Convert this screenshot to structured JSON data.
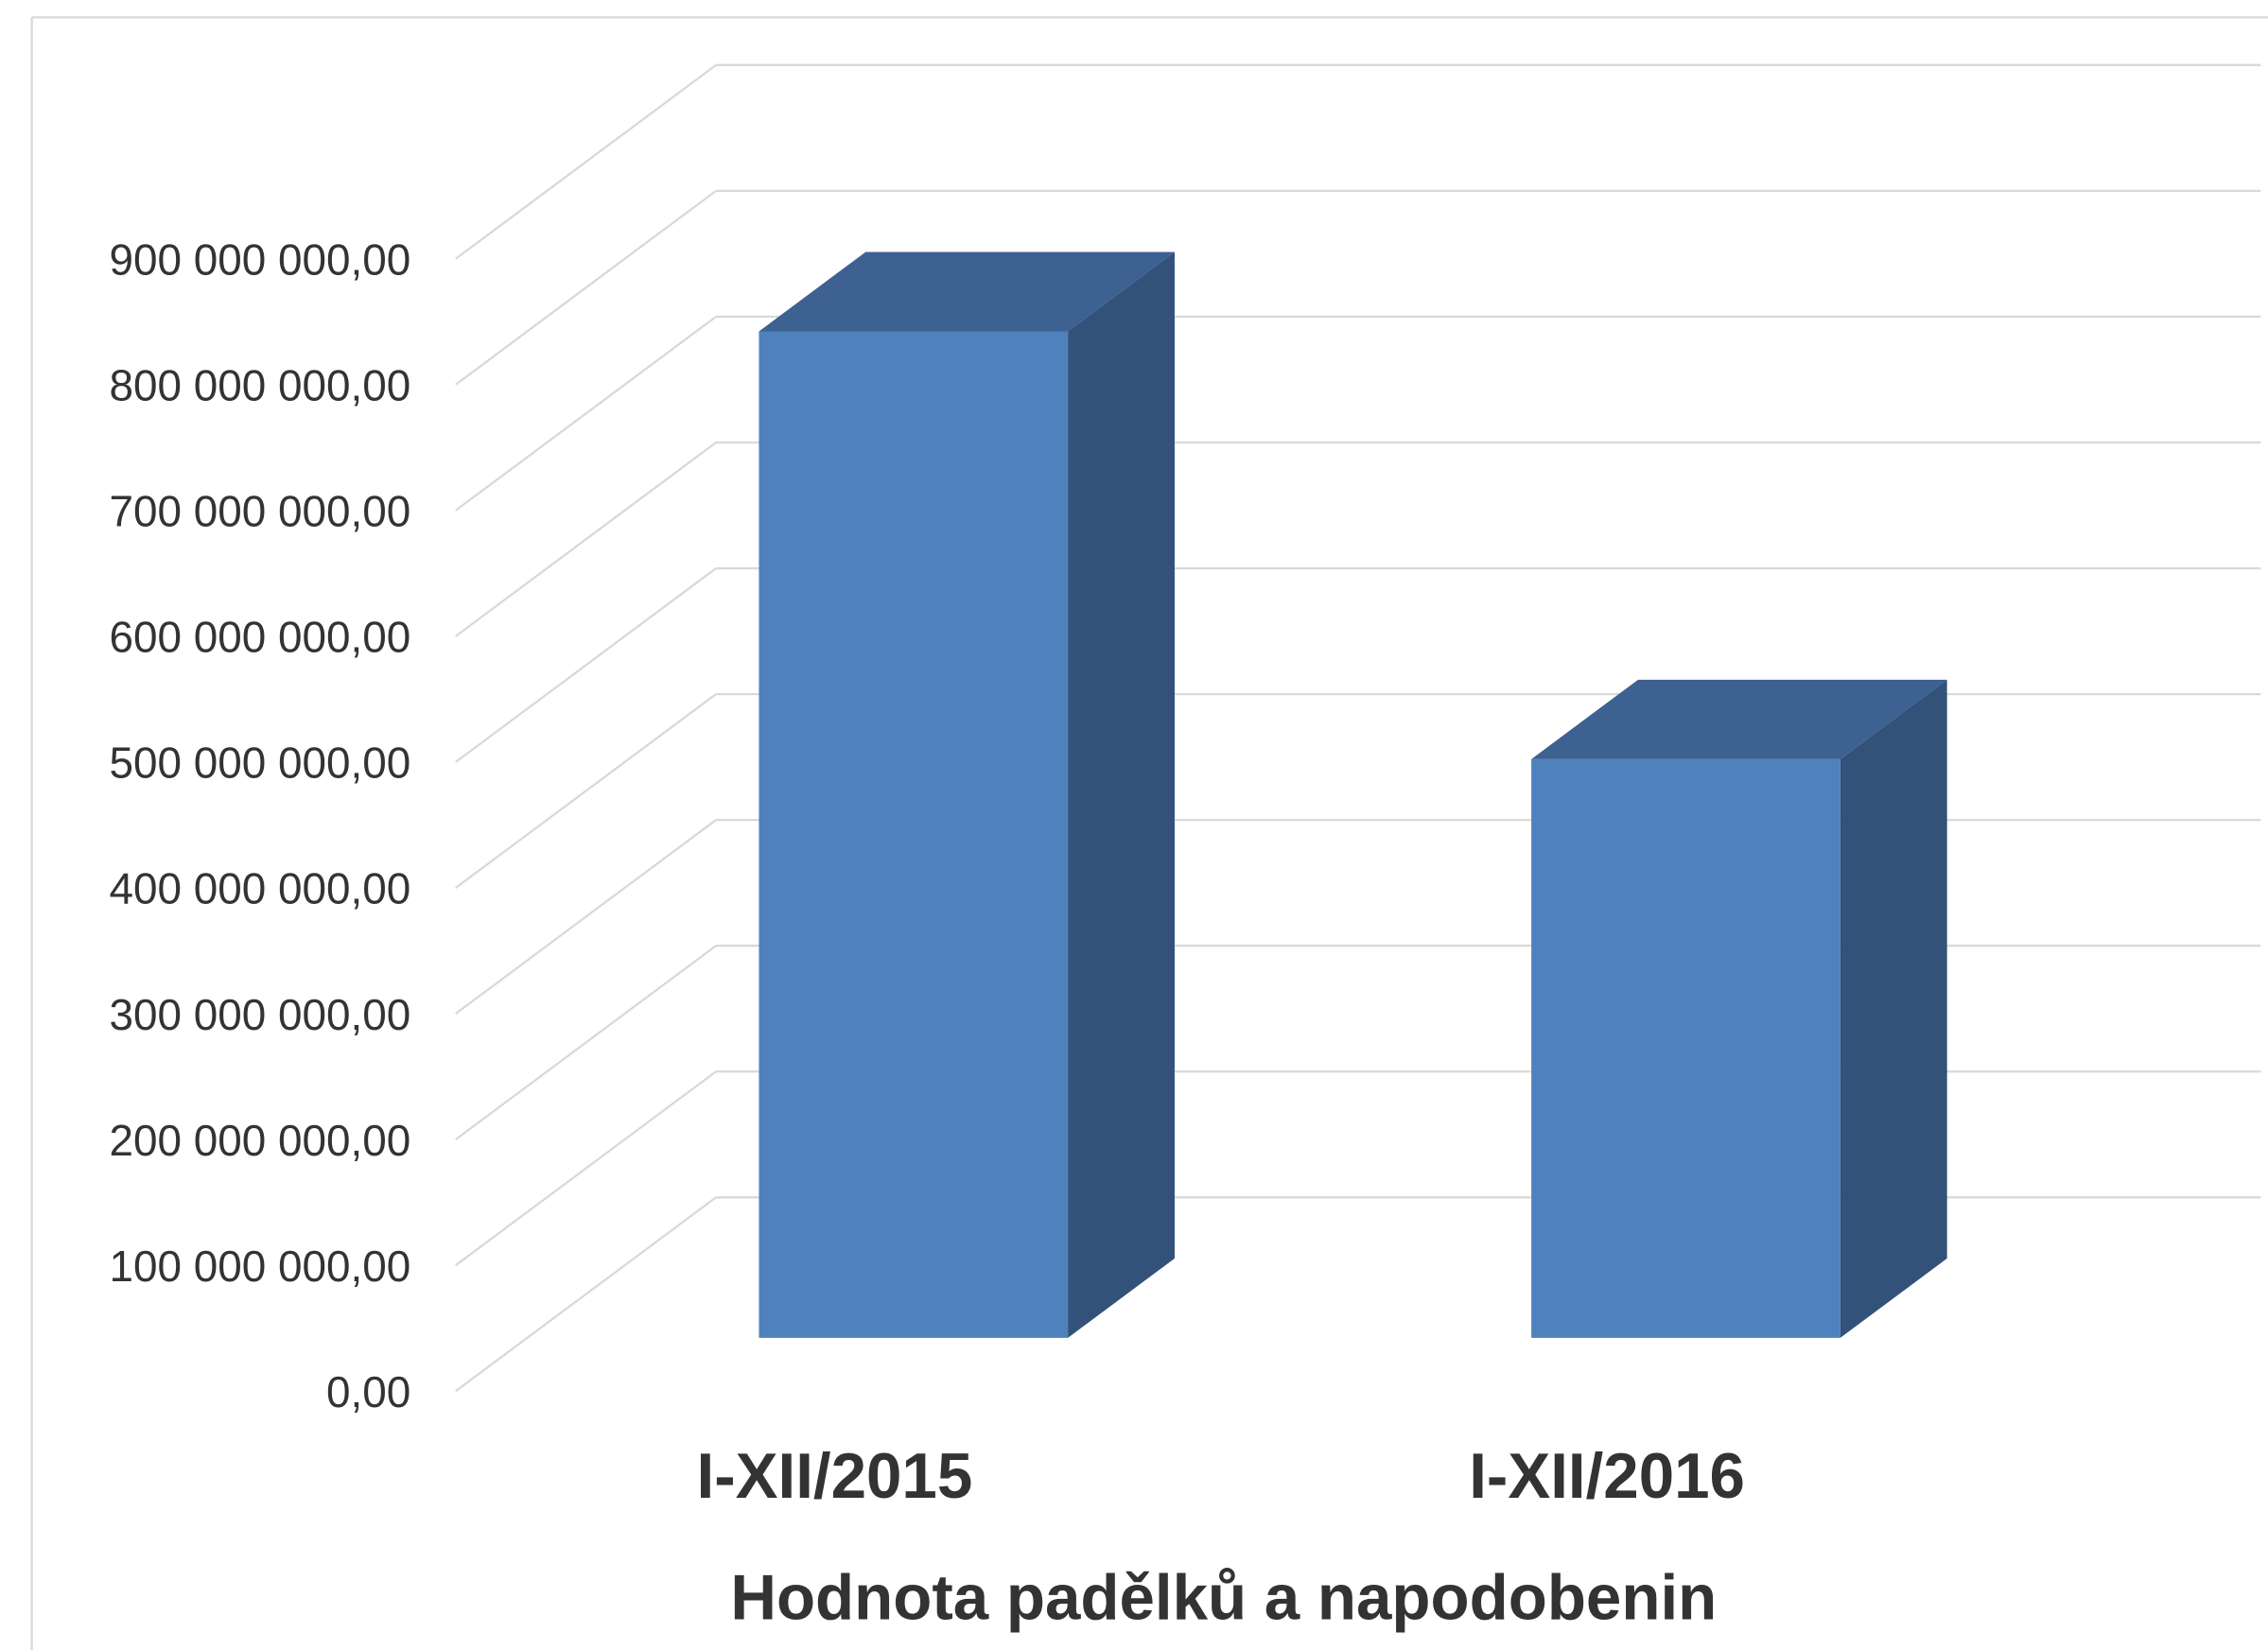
{
  "chart_data": {
    "type": "bar3d",
    "x_label": "Hodnota padělků a napodobenin",
    "categories": [
      "I-XII/2015",
      "I-XII/2016"
    ],
    "values": [
      800000000,
      460000000
    ],
    "color": "#4f81bd",
    "ylim": [
      0,
      900000000
    ],
    "yticks": [
      {
        "value": 0,
        "label": "0,00"
      },
      {
        "value": 100000000,
        "label": "100 000 000,00"
      },
      {
        "value": 200000000,
        "label": "200 000 000,00"
      },
      {
        "value": 300000000,
        "label": "300 000 000,00"
      },
      {
        "value": 400000000,
        "label": "400 000 000,00"
      },
      {
        "value": 500000000,
        "label": "500 000 000,00"
      },
      {
        "value": 600000000,
        "label": "600 000 000,00"
      },
      {
        "value": 700000000,
        "label": "700 000 000,00"
      },
      {
        "value": 800000000,
        "label": "800 000 000,00"
      },
      {
        "value": 900000000,
        "label": "900 000 000,00"
      }
    ],
    "grid": true
  }
}
